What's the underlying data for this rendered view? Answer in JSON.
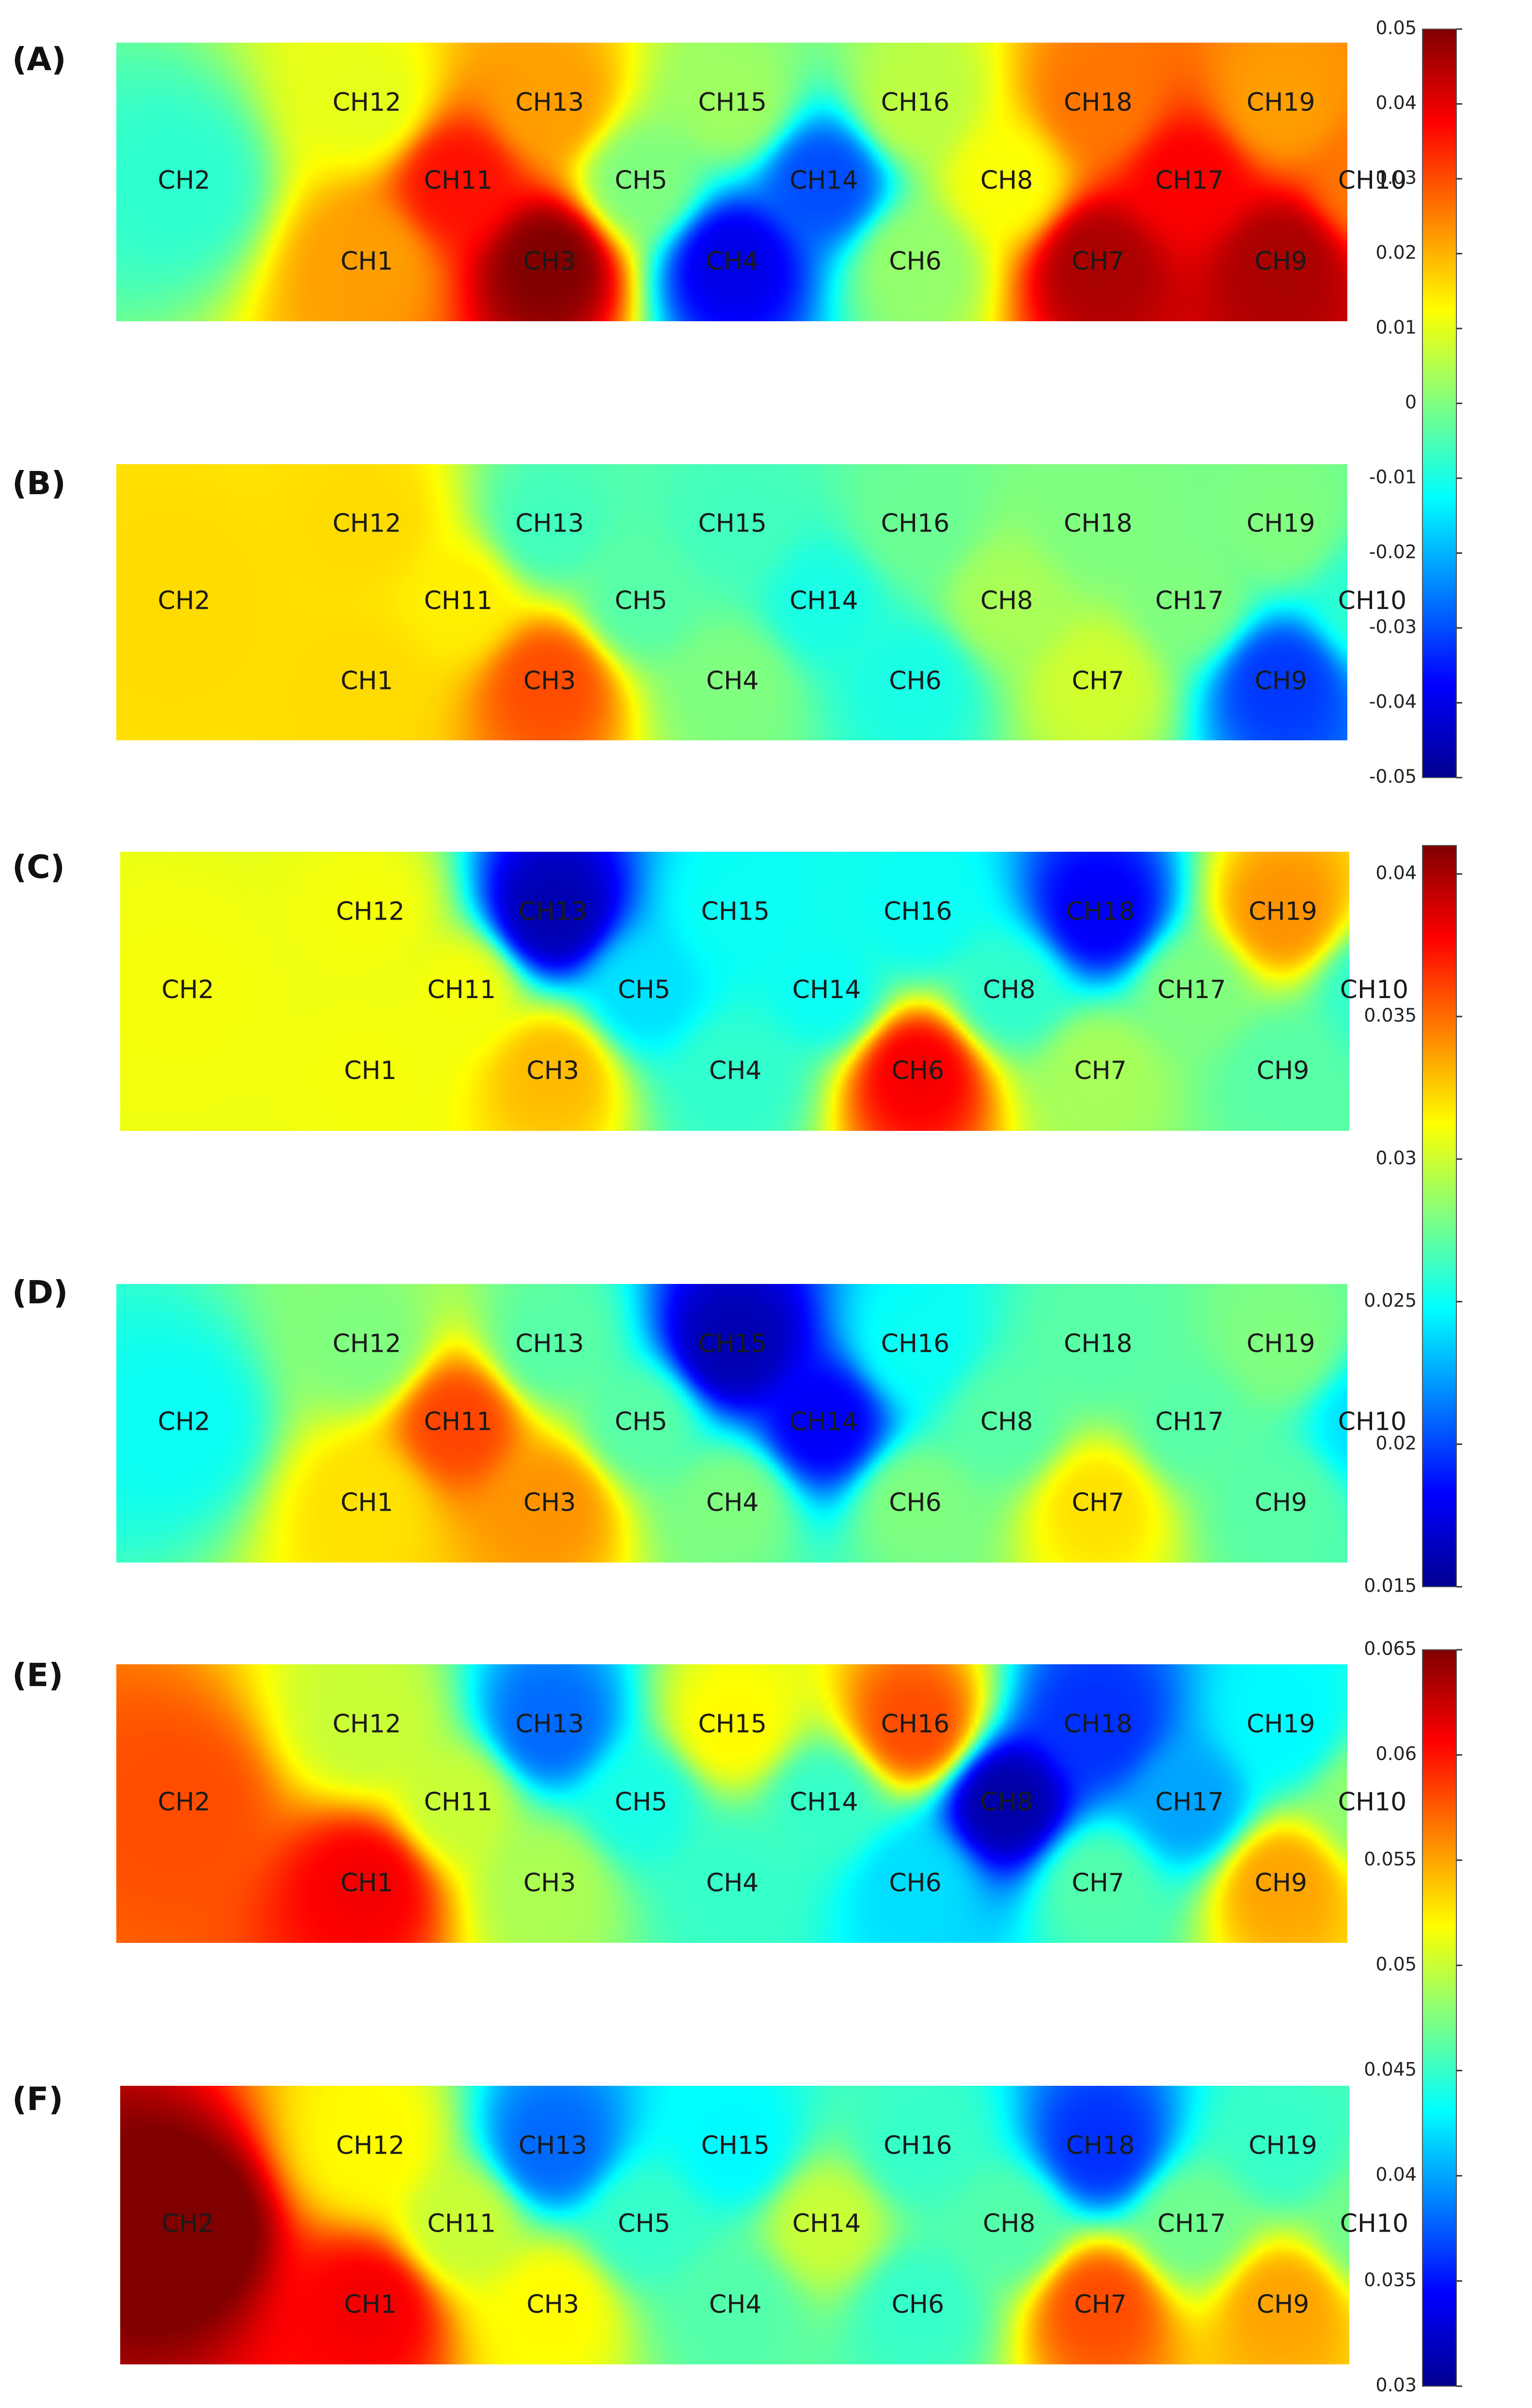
{
  "chart_data": {
    "type": "heatmap",
    "colormap": "jet",
    "colormap_stops": [
      "#00008f",
      "#0000ff",
      "#0080ff",
      "#00ffff",
      "#80ff80",
      "#ffff00",
      "#ff8000",
      "#ff0000",
      "#800000"
    ],
    "channels": [
      {
        "name": "CH1",
        "row": 2,
        "col": 1
      },
      {
        "name": "CH2",
        "row": 1,
        "col": 0
      },
      {
        "name": "CH3",
        "row": 2,
        "col": 2
      },
      {
        "name": "CH4",
        "row": 2,
        "col": 3
      },
      {
        "name": "CH5",
        "row": 1,
        "col": 2.5
      },
      {
        "name": "CH6",
        "row": 2,
        "col": 4
      },
      {
        "name": "CH7",
        "row": 2,
        "col": 5
      },
      {
        "name": "CH8",
        "row": 1,
        "col": 4.5
      },
      {
        "name": "CH9",
        "row": 2,
        "col": 6
      },
      {
        "name": "CH10",
        "row": 1,
        "col": 6.5
      },
      {
        "name": "CH11",
        "row": 1,
        "col": 1.5
      },
      {
        "name": "CH12",
        "row": 0,
        "col": 1
      },
      {
        "name": "CH13",
        "row": 0,
        "col": 2
      },
      {
        "name": "CH14",
        "row": 1,
        "col": 3.5
      },
      {
        "name": "CH15",
        "row": 0,
        "col": 3
      },
      {
        "name": "CH16",
        "row": 0,
        "col": 4
      },
      {
        "name": "CH17",
        "row": 1,
        "col": 5.5
      },
      {
        "name": "CH18",
        "row": 0,
        "col": 5
      },
      {
        "name": "CH19",
        "row": 0,
        "col": 6
      }
    ],
    "panels": [
      {
        "label": "(A)",
        "range": [
          -0.05,
          0.05
        ],
        "values": {
          "CH1": 0.022,
          "CH2": -0.008,
          "CH3": 0.05,
          "CH4": -0.04,
          "CH5": 0.0,
          "CH6": 0.002,
          "CH7": 0.046,
          "CH8": 0.012,
          "CH9": 0.046,
          "CH10": 0.026,
          "CH11": 0.036,
          "CH12": 0.01,
          "CH13": 0.022,
          "CH14": -0.03,
          "CH15": 0.003,
          "CH16": 0.006,
          "CH17": 0.038,
          "CH18": 0.026,
          "CH19": 0.022
        }
      },
      {
        "label": "(B)",
        "range": [
          -0.05,
          0.05
        ],
        "values": {
          "CH1": 0.016,
          "CH2": 0.016,
          "CH3": 0.03,
          "CH4": 0.0,
          "CH5": -0.004,
          "CH6": -0.01,
          "CH7": 0.008,
          "CH8": 0.004,
          "CH9": -0.032,
          "CH10": -0.008,
          "CH11": 0.014,
          "CH12": 0.016,
          "CH13": -0.006,
          "CH14": -0.01,
          "CH15": -0.006,
          "CH16": -0.002,
          "CH17": 0.0,
          "CH18": 0.0,
          "CH19": 0.0
        }
      },
      {
        "label": "(C)",
        "range": [
          0.015,
          0.041
        ],
        "values": {
          "CH1": 0.031,
          "CH2": 0.031,
          "CH3": 0.033,
          "CH4": 0.026,
          "CH5": 0.024,
          "CH6": 0.038,
          "CH7": 0.029,
          "CH8": 0.026,
          "CH9": 0.027,
          "CH10": 0.026,
          "CH11": 0.031,
          "CH12": 0.031,
          "CH13": 0.016,
          "CH14": 0.025,
          "CH15": 0.025,
          "CH16": 0.025,
          "CH17": 0.028,
          "CH18": 0.018,
          "CH19": 0.034
        }
      },
      {
        "label": "(D)",
        "range": [
          0.015,
          0.041
        ],
        "values": {
          "CH1": 0.032,
          "CH2": 0.025,
          "CH3": 0.034,
          "CH4": 0.028,
          "CH5": 0.027,
          "CH6": 0.028,
          "CH7": 0.032,
          "CH8": 0.027,
          "CH9": 0.027,
          "CH10": 0.024,
          "CH11": 0.036,
          "CH12": 0.028,
          "CH13": 0.027,
          "CH14": 0.018,
          "CH15": 0.016,
          "CH16": 0.025,
          "CH17": 0.027,
          "CH18": 0.027,
          "CH19": 0.028
        }
      },
      {
        "label": "(E)",
        "range": [
          0.03,
          0.065
        ],
        "values": {
          "CH1": 0.061,
          "CH2": 0.058,
          "CH3": 0.049,
          "CH4": 0.045,
          "CH5": 0.044,
          "CH6": 0.042,
          "CH7": 0.046,
          "CH8": 0.031,
          "CH9": 0.055,
          "CH10": 0.048,
          "CH11": 0.05,
          "CH12": 0.05,
          "CH13": 0.038,
          "CH14": 0.045,
          "CH15": 0.052,
          "CH16": 0.058,
          "CH17": 0.04,
          "CH18": 0.036,
          "CH19": 0.043
        }
      },
      {
        "label": "(F)",
        "range": [
          0.03,
          0.065
        ],
        "values": {
          "CH1": 0.061,
          "CH2": 0.066,
          "CH3": 0.052,
          "CH4": 0.046,
          "CH5": 0.045,
          "CH6": 0.045,
          "CH7": 0.058,
          "CH8": 0.046,
          "CH9": 0.055,
          "CH10": 0.047,
          "CH11": 0.05,
          "CH12": 0.052,
          "CH13": 0.038,
          "CH14": 0.05,
          "CH15": 0.043,
          "CH16": 0.045,
          "CH17": 0.047,
          "CH18": 0.036,
          "CH19": 0.045
        }
      }
    ],
    "colorbars": [
      {
        "range": [
          -0.05,
          0.05
        ],
        "ticks": [
          "0.05",
          "0.04",
          "0.03",
          "0.02",
          "0.01",
          "0",
          "-0.01",
          "-0.02",
          "-0.03",
          "-0.04",
          "-0.05"
        ]
      },
      {
        "range": [
          0.015,
          0.041
        ],
        "ticks": [
          "0.04",
          "0.035",
          "0.03",
          "0.025",
          "0.02",
          "0.015"
        ]
      },
      {
        "range": [
          0.03,
          0.065
        ],
        "ticks": [
          "0.065",
          "0.06",
          "0.055",
          "0.05",
          "0.045",
          "0.04",
          "0.035",
          "0.03"
        ]
      }
    ]
  }
}
